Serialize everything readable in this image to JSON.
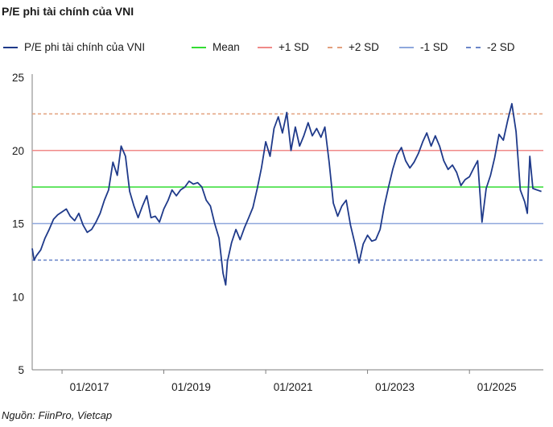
{
  "title": "P/E phi tài chính của VNI",
  "source": "Nguồn: FiinPro, Vietcap",
  "chart_data": {
    "type": "line",
    "title": "P/E phi tài chính của VNI",
    "xlabel": "",
    "ylabel": "",
    "ylim": [
      5,
      25
    ],
    "yticks": [
      5,
      10,
      15,
      20,
      25
    ],
    "xlim": [
      "2016-06-01",
      "2026-06-15"
    ],
    "xticks": [
      {
        "date": "2017-01-01",
        "label": "01/2017"
      },
      {
        "date": "2019-01-01",
        "label": "01/2019"
      },
      {
        "date": "2021-01-01",
        "label": "01/2021"
      },
      {
        "date": "2023-01-01",
        "label": "01/2023"
      },
      {
        "date": "2025-01-01",
        "label": "01/2025"
      }
    ],
    "grid": false,
    "legend_position": "top",
    "series": [
      {
        "name": "P/E phi tài chính của VNI",
        "color": "#1f3a8a",
        "style": "solid",
        "points": [
          [
            "2016-06-01",
            13.3
          ],
          [
            "2016-06-15",
            12.5
          ],
          [
            "2016-07-01",
            12.8
          ],
          [
            "2016-08-01",
            13.2
          ],
          [
            "2016-09-01",
            14.0
          ],
          [
            "2016-10-01",
            14.6
          ],
          [
            "2016-11-01",
            15.3
          ],
          [
            "2016-12-01",
            15.6
          ],
          [
            "2017-01-01",
            15.8
          ],
          [
            "2017-02-01",
            16.0
          ],
          [
            "2017-03-01",
            15.5
          ],
          [
            "2017-04-01",
            15.2
          ],
          [
            "2017-05-01",
            15.7
          ],
          [
            "2017-06-01",
            14.9
          ],
          [
            "2017-07-01",
            14.4
          ],
          [
            "2017-08-01",
            14.6
          ],
          [
            "2017-09-01",
            15.1
          ],
          [
            "2017-10-01",
            15.7
          ],
          [
            "2017-11-01",
            16.6
          ],
          [
            "2017-12-01",
            17.3
          ],
          [
            "2018-01-01",
            19.2
          ],
          [
            "2018-02-01",
            18.3
          ],
          [
            "2018-03-01",
            20.3
          ],
          [
            "2018-04-01",
            19.6
          ],
          [
            "2018-05-01",
            17.2
          ],
          [
            "2018-06-01",
            16.2
          ],
          [
            "2018-07-01",
            15.4
          ],
          [
            "2018-08-01",
            16.2
          ],
          [
            "2018-09-01",
            16.9
          ],
          [
            "2018-10-01",
            15.4
          ],
          [
            "2018-11-01",
            15.5
          ],
          [
            "2018-12-01",
            15.1
          ],
          [
            "2019-01-01",
            16.0
          ],
          [
            "2019-02-01",
            16.6
          ],
          [
            "2019-03-01",
            17.3
          ],
          [
            "2019-04-01",
            16.9
          ],
          [
            "2019-05-01",
            17.3
          ],
          [
            "2019-06-01",
            17.5
          ],
          [
            "2019-07-01",
            17.9
          ],
          [
            "2019-08-01",
            17.7
          ],
          [
            "2019-09-01",
            17.8
          ],
          [
            "2019-10-01",
            17.5
          ],
          [
            "2019-11-01",
            16.6
          ],
          [
            "2019-12-01",
            16.2
          ],
          [
            "2020-01-01",
            15.0
          ],
          [
            "2020-02-01",
            14.0
          ],
          [
            "2020-03-01",
            11.6
          ],
          [
            "2020-03-20",
            10.8
          ],
          [
            "2020-04-01",
            12.4
          ],
          [
            "2020-05-01",
            13.7
          ],
          [
            "2020-06-01",
            14.6
          ],
          [
            "2020-07-01",
            13.9
          ],
          [
            "2020-08-01",
            14.7
          ],
          [
            "2020-09-01",
            15.4
          ],
          [
            "2020-10-01",
            16.1
          ],
          [
            "2020-11-01",
            17.4
          ],
          [
            "2020-12-01",
            18.8
          ],
          [
            "2021-01-01",
            20.6
          ],
          [
            "2021-02-01",
            19.6
          ],
          [
            "2021-03-01",
            21.5
          ],
          [
            "2021-04-01",
            22.3
          ],
          [
            "2021-05-01",
            21.2
          ],
          [
            "2021-06-01",
            22.6
          ],
          [
            "2021-07-01",
            20.0
          ],
          [
            "2021-08-01",
            21.6
          ],
          [
            "2021-09-01",
            20.3
          ],
          [
            "2021-10-01",
            21.0
          ],
          [
            "2021-11-01",
            21.9
          ],
          [
            "2021-12-01",
            21.0
          ],
          [
            "2022-01-01",
            21.5
          ],
          [
            "2022-02-01",
            20.9
          ],
          [
            "2022-03-01",
            21.6
          ],
          [
            "2022-04-01",
            19.2
          ],
          [
            "2022-05-01",
            16.4
          ],
          [
            "2022-06-01",
            15.5
          ],
          [
            "2022-07-01",
            16.2
          ],
          [
            "2022-08-01",
            16.6
          ],
          [
            "2022-09-01",
            14.9
          ],
          [
            "2022-10-01",
            13.7
          ],
          [
            "2022-11-01",
            12.3
          ],
          [
            "2022-12-01",
            13.6
          ],
          [
            "2023-01-01",
            14.2
          ],
          [
            "2023-02-01",
            13.8
          ],
          [
            "2023-03-01",
            13.9
          ],
          [
            "2023-04-01",
            14.6
          ],
          [
            "2023-05-01",
            16.2
          ],
          [
            "2023-06-01",
            17.5
          ],
          [
            "2023-07-01",
            18.7
          ],
          [
            "2023-08-01",
            19.7
          ],
          [
            "2023-09-01",
            20.2
          ],
          [
            "2023-10-01",
            19.3
          ],
          [
            "2023-11-01",
            18.8
          ],
          [
            "2023-12-01",
            19.2
          ],
          [
            "2024-01-01",
            19.8
          ],
          [
            "2024-02-01",
            20.6
          ],
          [
            "2024-03-01",
            21.2
          ],
          [
            "2024-04-01",
            20.3
          ],
          [
            "2024-05-01",
            21.0
          ],
          [
            "2024-06-01",
            20.3
          ],
          [
            "2024-07-01",
            19.3
          ],
          [
            "2024-08-01",
            18.7
          ],
          [
            "2024-09-01",
            19.0
          ],
          [
            "2024-10-01",
            18.5
          ],
          [
            "2024-11-01",
            17.6
          ],
          [
            "2024-12-01",
            18.0
          ],
          [
            "2025-01-01",
            18.2
          ],
          [
            "2025-02-01",
            18.8
          ],
          [
            "2025-03-01",
            19.3
          ],
          [
            "2025-04-01",
            15.1
          ],
          [
            "2025-05-01",
            17.4
          ],
          [
            "2025-06-01",
            18.3
          ],
          [
            "2025-07-01",
            19.5
          ],
          [
            "2025-08-01",
            21.1
          ],
          [
            "2025-09-01",
            20.7
          ],
          [
            "2025-10-01",
            22.0
          ],
          [
            "2025-11-01",
            23.2
          ],
          [
            "2025-12-01",
            21.3
          ],
          [
            "2026-01-01",
            17.3
          ],
          [
            "2026-02-01",
            16.5
          ],
          [
            "2026-02-20",
            15.7
          ],
          [
            "2026-03-10",
            19.6
          ],
          [
            "2026-04-01",
            17.4
          ],
          [
            "2026-05-01",
            17.3
          ],
          [
            "2026-06-01",
            17.2
          ]
        ]
      },
      {
        "name": "Mean",
        "color": "#33dd33",
        "style": "solid",
        "value": 17.5
      },
      {
        "name": "+1 SD",
        "color": "#f08a88",
        "style": "solid",
        "value": 20.0
      },
      {
        "name": "+2 SD",
        "color": "#e3a07d",
        "style": "dashed",
        "value": 22.5
      },
      {
        "name": "-1 SD",
        "color": "#8fa8dd",
        "style": "solid",
        "value": 15.0
      },
      {
        "name": "-2 SD",
        "color": "#6b86c9",
        "style": "dashed",
        "value": 12.5
      }
    ]
  }
}
